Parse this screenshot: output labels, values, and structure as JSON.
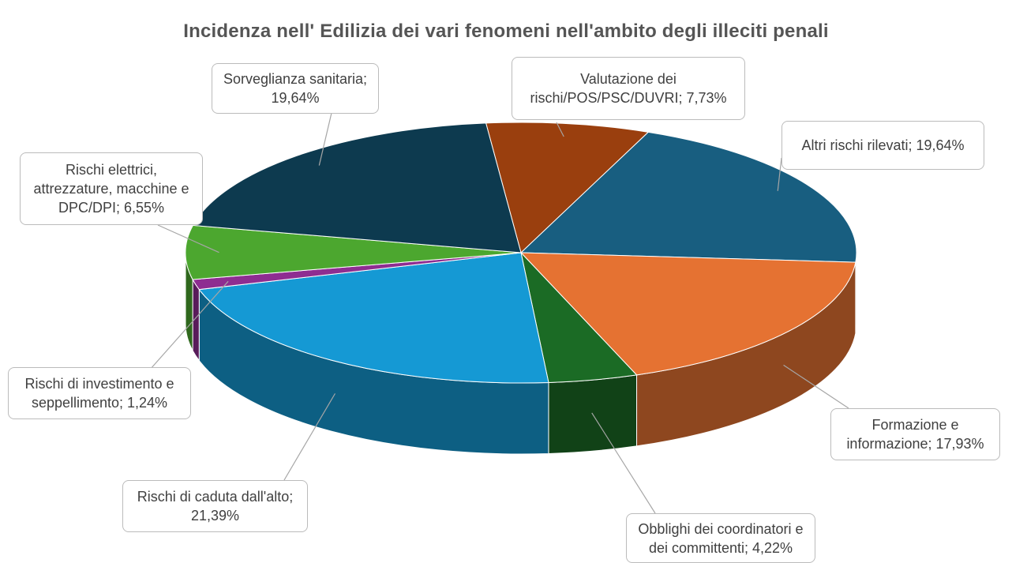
{
  "chart_data": {
    "type": "pie",
    "title": "Incidenza nell' Edilizia dei vari fenomeni nell'ambito degli illeciti penali",
    "values": [
      7.73,
      19.64,
      17.93,
      4.22,
      21.39,
      1.24,
      6.55,
      19.64
    ],
    "value_labels": [
      "Valutazione dei rischi/POS/PSC/DUVRI; 7,73%",
      "Altri rischi rilevati; 19,64%",
      "Formazione e informazione; 17,93%",
      "Obblighi dei coordinatori e dei committenti; 4,22%",
      "Rischi di caduta dall'alto; 21,39%",
      "Rischi di investimento e seppellimento; 1,24%",
      "Rischi elettrici, attrezzature, macchine e DPC/DPI; 6,55%",
      "Sorveglianza sanitaria; 19,64%"
    ],
    "colors": [
      "#9a3f0e",
      "#185e80",
      "#e57232",
      "#1b6b25",
      "#1599d4",
      "#8e2d91",
      "#4ca72f",
      "#0d3a4f"
    ]
  }
}
